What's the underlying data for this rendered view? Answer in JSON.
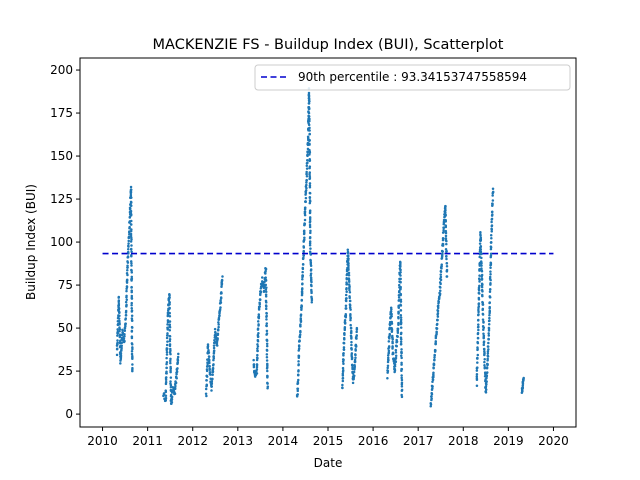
{
  "chart_data": {
    "type": "scatter",
    "title": "MACKENZIE FS - Buildup Index (BUI), Scatterplot",
    "xlabel": "Date",
    "ylabel": "Buildup Index (BUI)",
    "xlim": [
      2009.5,
      2020.5
    ],
    "ylim": [
      -7.5,
      207
    ],
    "xticks": [
      2010,
      2011,
      2012,
      2013,
      2014,
      2015,
      2016,
      2017,
      2018,
      2019,
      2020
    ],
    "xtick_labels": [
      "2010",
      "2011",
      "2012",
      "2013",
      "2014",
      "2015",
      "2016",
      "2017",
      "2018",
      "2019",
      "2020"
    ],
    "yticks": [
      0,
      25,
      50,
      75,
      100,
      125,
      150,
      175,
      200
    ],
    "ytick_labels": [
      "0",
      "25",
      "50",
      "75",
      "100",
      "125",
      "150",
      "175",
      "200"
    ],
    "grid": false,
    "legend_position": "upper right",
    "point_color": "#1f77b4",
    "reference_line": {
      "label": "90th percentile : 93.34153747558594",
      "y": 93.34153747558594,
      "x_range": [
        2010,
        2020
      ],
      "color": "#0000cd",
      "style": "dashed"
    },
    "season_segments": [
      [
        [
          2010.32,
          35
        ],
        [
          2010.36,
          68
        ],
        [
          2010.4,
          30
        ],
        [
          2010.44,
          48
        ],
        [
          2010.48,
          42
        ],
        [
          2010.52,
          58
        ],
        [
          2010.56,
          90
        ],
        [
          2010.6,
          110
        ],
        [
          2010.63,
          132
        ],
        [
          2010.66,
          25
        ]
      ],
      [
        [
          2011.35,
          12
        ],
        [
          2011.4,
          8
        ],
        [
          2011.45,
          58
        ],
        [
          2011.48,
          70
        ],
        [
          2011.52,
          5
        ],
        [
          2011.56,
          15
        ],
        [
          2011.6,
          12
        ],
        [
          2011.64,
          22
        ],
        [
          2011.68,
          35
        ]
      ],
      [
        [
          2012.3,
          12
        ],
        [
          2012.34,
          40
        ],
        [
          2012.38,
          25
        ],
        [
          2012.42,
          15
        ],
        [
          2012.46,
          32
        ],
        [
          2012.5,
          48
        ],
        [
          2012.54,
          40
        ],
        [
          2012.58,
          55
        ],
        [
          2012.62,
          65
        ],
        [
          2012.66,
          80
        ]
      ],
      [
        [
          2013.35,
          30
        ],
        [
          2013.38,
          22
        ],
        [
          2013.42,
          25
        ],
        [
          2013.46,
          55
        ],
        [
          2013.5,
          70
        ],
        [
          2013.54,
          78
        ],
        [
          2013.58,
          72
        ],
        [
          2013.62,
          85
        ],
        [
          2013.66,
          15
        ]
      ],
      [
        [
          2014.32,
          10
        ],
        [
          2014.36,
          40
        ],
        [
          2014.4,
          55
        ],
        [
          2014.44,
          82
        ],
        [
          2014.48,
          110
        ],
        [
          2014.52,
          135
        ],
        [
          2014.56,
          160
        ],
        [
          2014.58,
          188
        ],
        [
          2014.61,
          95
        ],
        [
          2014.64,
          65
        ]
      ],
      [
        [
          2015.32,
          15
        ],
        [
          2015.36,
          45
        ],
        [
          2015.4,
          62
        ],
        [
          2015.44,
          95
        ],
        [
          2015.48,
          72
        ],
        [
          2015.52,
          40
        ],
        [
          2015.56,
          18
        ],
        [
          2015.6,
          30
        ],
        [
          2015.64,
          50
        ]
      ],
      [
        [
          2016.32,
          22
        ],
        [
          2016.36,
          45
        ],
        [
          2016.4,
          62
        ],
        [
          2016.44,
          35
        ],
        [
          2016.48,
          25
        ],
        [
          2016.52,
          40
        ],
        [
          2016.56,
          52
        ],
        [
          2016.6,
          90
        ],
        [
          2016.64,
          10
        ]
      ],
      [
        [
          2017.28,
          5
        ],
        [
          2017.32,
          18
        ],
        [
          2017.36,
          32
        ],
        [
          2017.4,
          45
        ],
        [
          2017.44,
          62
        ],
        [
          2017.48,
          70
        ],
        [
          2017.52,
          88
        ],
        [
          2017.56,
          105
        ],
        [
          2017.6,
          122
        ],
        [
          2017.64,
          80
        ]
      ],
      [
        [
          2018.3,
          18
        ],
        [
          2018.34,
          60
        ],
        [
          2018.38,
          105
        ],
        [
          2018.42,
          75
        ],
        [
          2018.46,
          40
        ],
        [
          2018.5,
          12
        ],
        [
          2018.54,
          30
        ],
        [
          2018.58,
          55
        ],
        [
          2018.62,
          100
        ],
        [
          2018.66,
          131
        ]
      ],
      [
        [
          2019.3,
          13
        ],
        [
          2019.32,
          17
        ],
        [
          2019.34,
          21
        ]
      ]
    ]
  }
}
